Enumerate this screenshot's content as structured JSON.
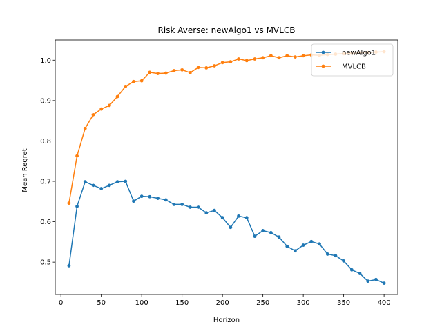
{
  "chart_data": {
    "type": "line",
    "title": "Risk Averse: newAlgo1 vs MVLCB",
    "xlabel": "Horizon",
    "ylabel": "Mean Regret",
    "xlim": [
      -7,
      417
    ],
    "ylim": [
      0.42,
      1.05
    ],
    "xticks": [
      0,
      50,
      100,
      150,
      200,
      250,
      300,
      350,
      400
    ],
    "yticks": [
      0.5,
      0.6,
      0.7,
      0.8,
      0.9,
      1.0
    ],
    "ytick_labels": [
      "0.5",
      "0.6",
      "0.7",
      "0.8",
      "0.9",
      "1.0"
    ],
    "grid": false,
    "legend_position": "top-right",
    "x": [
      10,
      20,
      30,
      40,
      50,
      60,
      70,
      80,
      90,
      100,
      110,
      120,
      130,
      140,
      150,
      160,
      170,
      180,
      190,
      200,
      210,
      220,
      230,
      240,
      250,
      260,
      270,
      280,
      290,
      300,
      310,
      320,
      330,
      340,
      350,
      360,
      370,
      380,
      390,
      400
    ],
    "series": [
      {
        "name": "newAlgo1",
        "color": "#1f77b4",
        "values": [
          0.491,
          0.638,
          0.699,
          0.69,
          0.682,
          0.69,
          0.699,
          0.7,
          0.651,
          0.663,
          0.662,
          0.658,
          0.654,
          0.643,
          0.643,
          0.636,
          0.636,
          0.622,
          0.628,
          0.61,
          0.586,
          0.614,
          0.61,
          0.564,
          0.578,
          0.573,
          0.562,
          0.539,
          0.528,
          0.542,
          0.551,
          0.545,
          0.52,
          0.516,
          0.503,
          0.481,
          0.472,
          0.453,
          0.457,
          0.448
        ]
      },
      {
        "name": "MVLCB",
        "color": "#ff7f0e",
        "values": [
          0.646,
          0.763,
          0.831,
          0.865,
          0.879,
          0.888,
          0.91,
          0.935,
          0.947,
          0.949,
          0.97,
          0.967,
          0.968,
          0.974,
          0.976,
          0.969,
          0.982,
          0.981,
          0.986,
          0.994,
          0.996,
          1.003,
          0.999,
          1.003,
          1.006,
          1.011,
          1.006,
          1.011,
          1.008,
          1.011,
          1.013,
          1.012,
          1.014,
          1.015,
          1.016,
          1.017,
          1.018,
          1.019,
          1.02,
          1.021
        ]
      }
    ]
  }
}
